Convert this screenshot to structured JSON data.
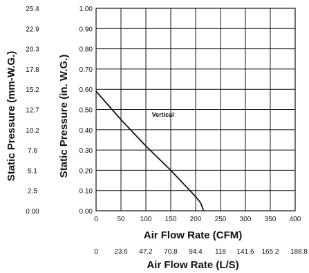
{
  "chart_data": {
    "type": "line",
    "xlabel_primary": "Air Flow Rate (CFM)",
    "xlabel_secondary": "Air Flow Rate (L/S)",
    "ylabel_primary": "Static Pressure (in. W.G.)",
    "ylabel_secondary": "Static Pressure (mm-W.G.)",
    "x_ticks_cfm": [
      "0",
      "50",
      "100",
      "150",
      "200",
      "250",
      "300",
      "350",
      "400"
    ],
    "x_ticks_ls": [
      "0",
      "23.6",
      "47.2",
      "70.8",
      "94.4",
      "118",
      "141.6",
      "165.2",
      "188.8"
    ],
    "y_ticks_in": [
      "0.00",
      "0.10",
      "0.20",
      "0.30",
      "0.40",
      "0.50",
      "0.60",
      "0.70",
      "0.80",
      "0.90",
      "1.00"
    ],
    "y_ticks_mm": [
      "0.00",
      "2.5",
      "5.1",
      "7.6",
      "10.2",
      "12.7",
      "15.2",
      "17.8",
      "20.3",
      "22.9",
      "25.4"
    ],
    "xlim": [
      0,
      400
    ],
    "ylim": [
      0,
      1.0
    ],
    "grid": true,
    "series": [
      {
        "name": "Vertical",
        "x": [
          0,
          50,
          100,
          150,
          200,
          210,
          216
        ],
        "y": [
          0.59,
          0.45,
          0.32,
          0.2,
          0.07,
          0.04,
          0.0
        ]
      }
    ],
    "annotations": [
      {
        "text": "Vertical",
        "x": 112,
        "y": 0.465
      }
    ]
  }
}
